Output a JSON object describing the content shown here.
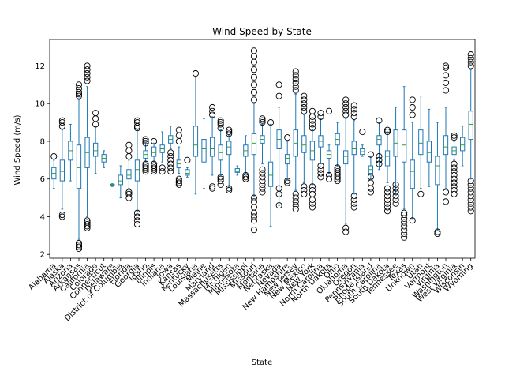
{
  "chart_data": {
    "type": "boxplot",
    "title": "Wind Speed by State",
    "xlabel": "State",
    "ylabel": "Wind Speed (m/s)",
    "ylim": [
      1.8,
      13.4
    ],
    "yticks": [
      2,
      4,
      6,
      8,
      10,
      12
    ],
    "grid": false,
    "legend": "none",
    "colors": {
      "box": "#1f77b4",
      "median": "#2ca02c",
      "flier": "#000000"
    },
    "categories": [
      "Alabama",
      "Alaska",
      "Arizona",
      "Arkansas",
      "California",
      "Colorado",
      "Connecticut",
      "Delaware",
      "District of Columbia",
      "Florida",
      "Georgia",
      "Idaho",
      "Illinois",
      "Indiana",
      "Iowa",
      "Kansas",
      "Kentucky",
      "Louisiana",
      "Maine",
      "Maryland",
      "Massachusetts",
      "Michigan",
      "Minnesota",
      "Mississippi",
      "Missouri",
      "Montana",
      "Nebraska",
      "Nevada",
      "New Hampshire",
      "New Jersey",
      "New Mexico",
      "New York",
      "North Carolina",
      "North Dakota",
      "Ohio",
      "Oklahoma",
      "Oregon",
      "Pennsylvania",
      "Rhode Island",
      "South Carolina",
      "South Dakota",
      "Tennessee",
      "Texas",
      "Unknown",
      "Utah",
      "Vermont",
      "Virginia",
      "Washington",
      "West Virginia",
      "Wisconsin",
      "Wyoming"
    ],
    "boxes": [
      {
        "min": 5.5,
        "q1": 6.0,
        "median": 6.3,
        "q3": 6.6,
        "max": 7.0,
        "fliers": [
          7.2
        ]
      },
      {
        "min": 4.4,
        "q1": 5.9,
        "median": 6.4,
        "q3": 7.0,
        "max": 8.6,
        "fliers": [
          4.0,
          4.1,
          8.8,
          9.0,
          9.1
        ]
      },
      {
        "min": 5.9,
        "q1": 7.0,
        "median": 7.5,
        "q3": 8.0,
        "max": 8.9,
        "fliers": []
      },
      {
        "min": 2.8,
        "q1": 5.5,
        "median": 6.6,
        "q3": 7.8,
        "max": 10.2,
        "fliers": [
          2.3,
          2.4,
          2.5,
          2.6,
          10.4,
          10.5,
          10.6,
          10.8,
          11.0
        ]
      },
      {
        "min": 4.0,
        "q1": 6.6,
        "median": 7.4,
        "q3": 8.2,
        "max": 10.9,
        "fliers": [
          3.4,
          3.5,
          3.6,
          3.7,
          3.8,
          11.2,
          11.4,
          11.6,
          11.8,
          12.0
        ]
      },
      {
        "min": 6.3,
        "q1": 7.2,
        "median": 7.5,
        "q3": 7.9,
        "max": 8.8,
        "fliers": [
          8.9,
          9.2,
          9.5
        ]
      },
      {
        "min": 6.6,
        "q1": 6.9,
        "median": 7.1,
        "q3": 7.3,
        "max": 7.5,
        "fliers": []
      },
      {
        "min": 5.6,
        "q1": 5.65,
        "median": 5.68,
        "q3": 5.72,
        "max": 5.75,
        "fliers": []
      },
      {
        "min": 5.0,
        "q1": 5.7,
        "median": 5.9,
        "q3": 6.2,
        "max": 6.7,
        "fliers": []
      },
      {
        "min": 5.5,
        "q1": 6.0,
        "median": 6.2,
        "q3": 6.5,
        "max": 7.0,
        "fliers": [
          5.0,
          5.2,
          5.3,
          7.2,
          7.5,
          7.8
        ]
      },
      {
        "min": 4.3,
        "q1": 5.9,
        "median": 6.5,
        "q3": 7.0,
        "max": 8.6,
        "fliers": [
          3.6,
          3.8,
          4.0,
          4.2,
          8.7,
          8.8,
          9.0,
          9.1
        ]
      },
      {
        "min": 6.9,
        "q1": 7.1,
        "median": 7.3,
        "q3": 7.5,
        "max": 7.9,
        "fliers": [
          6.4,
          6.5,
          6.6,
          6.7,
          6.8,
          7.9,
          8.0,
          8.1
        ]
      },
      {
        "min": 6.9,
        "q1": 7.2,
        "median": 7.4,
        "q3": 7.7,
        "max": 7.9,
        "fliers": [
          6.4,
          6.5,
          6.6,
          6.7,
          6.8,
          8.0
        ]
      },
      {
        "min": 6.9,
        "q1": 7.4,
        "median": 7.6,
        "q3": 7.8,
        "max": 8.5,
        "fliers": [
          6.4,
          6.6
        ]
      },
      {
        "min": 7.6,
        "q1": 7.9,
        "median": 8.1,
        "q3": 8.3,
        "max": 8.8,
        "fliers": [
          6.4,
          6.6,
          6.8,
          7.0,
          7.2,
          7.4
        ]
      },
      {
        "min": 6.3,
        "q1": 6.6,
        "median": 6.8,
        "q3": 7.0,
        "max": 7.7,
        "fliers": [
          5.7,
          5.8,
          5.9,
          6.0,
          8.0,
          8.3,
          8.6
        ]
      },
      {
        "min": 6.1,
        "q1": 6.2,
        "median": 6.3,
        "q3": 6.5,
        "max": 6.6,
        "fliers": [
          7.0
        ]
      },
      {
        "min": 5.2,
        "q1": 7.2,
        "median": 7.8,
        "q3": 8.8,
        "max": 11.4,
        "fliers": [
          11.6
        ]
      },
      {
        "min": 5.5,
        "q1": 6.9,
        "median": 7.6,
        "q3": 8.1,
        "max": 9.2,
        "fliers": []
      },
      {
        "min": 6.2,
        "q1": 7.2,
        "median": 7.6,
        "q3": 8.2,
        "max": 9.3,
        "fliers": [
          5.5,
          5.6,
          9.4,
          9.6,
          9.8
        ]
      },
      {
        "min": 6.2,
        "q1": 7.0,
        "median": 7.4,
        "q3": 7.8,
        "max": 8.6,
        "fliers": [
          5.7,
          5.9,
          6.0,
          6.1,
          8.7,
          8.9,
          9.0,
          9.1
        ]
      },
      {
        "min": 5.6,
        "q1": 7.3,
        "median": 7.7,
        "q3": 8.0,
        "max": 8.3,
        "fliers": [
          5.4,
          5.5,
          8.4,
          8.5,
          8.6
        ]
      },
      {
        "min": 6.2,
        "q1": 6.35,
        "median": 6.4,
        "q3": 6.55,
        "max": 6.7,
        "fliers": []
      },
      {
        "min": 6.3,
        "q1": 7.2,
        "median": 7.5,
        "q3": 7.8,
        "max": 8.3,
        "fliers": [
          6.0,
          6.1,
          6.2
        ]
      },
      {
        "min": 5.1,
        "q1": 7.3,
        "median": 7.9,
        "q3": 8.4,
        "max": 10.0,
        "fliers": [
          3.3,
          3.8,
          4.0,
          4.2,
          4.5,
          4.8,
          5.0,
          10.2,
          10.6,
          11.0,
          11.4,
          11.8,
          12.2,
          12.5,
          12.8
        ]
      },
      {
        "min": 6.8,
        "q1": 7.9,
        "median": 8.1,
        "q3": 8.3,
        "max": 8.9,
        "fliers": [
          5.3,
          5.5,
          5.7,
          5.9,
          6.1,
          6.3,
          6.5,
          9.0,
          9.1,
          9.2
        ]
      },
      {
        "min": 3.5,
        "q1": 5.6,
        "median": 6.2,
        "q3": 6.9,
        "max": 8.9,
        "fliers": [
          9.0
        ]
      },
      {
        "min": 4.6,
        "q1": 7.6,
        "median": 8.1,
        "q3": 8.6,
        "max": 9.8,
        "fliers": [
          4.6,
          5.2,
          5.5,
          10.4,
          11.0
        ]
      },
      {
        "min": 6.0,
        "q1": 6.8,
        "median": 7.1,
        "q3": 7.3,
        "max": 8.0,
        "fliers": [
          5.8,
          5.9,
          8.2
        ]
      },
      {
        "min": 5.4,
        "q1": 7.2,
        "median": 7.9,
        "q3": 8.6,
        "max": 10.5,
        "fliers": [
          4.4,
          4.6,
          4.8,
          5.0,
          5.2,
          10.7,
          10.9,
          11.1,
          11.3,
          11.5,
          11.7
        ]
      },
      {
        "min": 5.8,
        "q1": 7.4,
        "median": 7.8,
        "q3": 8.3,
        "max": 9.4,
        "fliers": [
          5.2,
          5.4,
          5.6,
          9.6,
          9.8,
          10.0,
          10.2,
          10.4
        ]
      },
      {
        "min": 5.7,
        "q1": 7.0,
        "median": 7.5,
        "q3": 8.0,
        "max": 8.6,
        "fliers": [
          4.5,
          4.7,
          4.9,
          5.2,
          5.4,
          5.6,
          8.7,
          8.9,
          9.1,
          9.3,
          9.6
        ]
      },
      {
        "min": 6.8,
        "q1": 7.7,
        "median": 8.0,
        "q3": 8.3,
        "max": 9.2,
        "fliers": [
          6.1,
          6.3,
          6.5,
          6.7,
          9.3,
          9.5
        ]
      },
      {
        "min": 6.3,
        "q1": 7.1,
        "median": 7.3,
        "q3": 7.5,
        "max": 7.8,
        "fliers": [
          6.0,
          6.2,
          9.6
        ]
      },
      {
        "min": 6.7,
        "q1": 7.8,
        "median": 8.1,
        "q3": 8.4,
        "max": 9.0,
        "fliers": [
          5.9,
          6.0,
          6.1,
          6.2,
          6.3,
          6.4,
          6.5,
          6.6
        ]
      },
      {
        "min": 3.6,
        "q1": 6.8,
        "median": 7.2,
        "q3": 7.5,
        "max": 9.2,
        "fliers": [
          3.2,
          3.4,
          9.4,
          9.6,
          9.8,
          10.0,
          10.2
        ]
      },
      {
        "min": 5.2,
        "q1": 7.3,
        "median": 7.6,
        "q3": 8.0,
        "max": 9.1,
        "fliers": [
          4.5,
          4.7,
          4.9,
          5.1,
          9.3,
          9.5,
          9.7,
          9.9
        ]
      },
      {
        "min": 7.2,
        "q1": 7.3,
        "median": 7.45,
        "q3": 7.6,
        "max": 7.8,
        "fliers": [
          8.5
        ]
      },
      {
        "min": 6.0,
        "q1": 6.3,
        "median": 6.5,
        "q3": 6.7,
        "max": 7.2,
        "fliers": [
          5.3,
          5.5,
          5.8,
          6.1,
          7.3
        ]
      },
      {
        "min": 6.5,
        "q1": 7.8,
        "median": 8.1,
        "q3": 8.3,
        "max": 9.0,
        "fliers": [
          6.8,
          7.0,
          7.2,
          9.1
        ]
      },
      {
        "min": 5.8,
        "q1": 6.7,
        "median": 7.2,
        "q3": 7.5,
        "max": 8.5,
        "fliers": [
          4.3,
          4.5,
          4.7,
          4.9,
          5.1,
          5.3,
          5.5,
          8.5,
          8.6
        ]
      },
      {
        "min": 5.2,
        "q1": 7.2,
        "median": 7.9,
        "q3": 8.6,
        "max": 9.8,
        "fliers": [
          4.7,
          4.9,
          5.1,
          5.3,
          5.5,
          5.7
        ]
      },
      {
        "min": 4.4,
        "q1": 6.9,
        "median": 7.8,
        "q3": 8.6,
        "max": 10.9,
        "fliers": [
          2.9,
          3.1,
          3.3,
          3.5,
          3.7,
          3.9,
          4.1,
          4.2
        ]
      },
      {
        "min": 3.9,
        "q1": 5.5,
        "median": 6.4,
        "q3": 7.0,
        "max": 9.0,
        "fliers": [
          3.8,
          9.4,
          9.8,
          10.2
        ]
      },
      {
        "min": 5.5,
        "q1": 7.3,
        "median": 7.9,
        "q3": 8.6,
        "max": 10.4,
        "fliers": [
          5.2
        ]
      },
      {
        "min": 5.6,
        "q1": 6.9,
        "median": 7.4,
        "q3": 8.0,
        "max": 9.7,
        "fliers": []
      },
      {
        "min": 3.3,
        "q1": 5.7,
        "median": 6.7,
        "q3": 7.2,
        "max": 9.0,
        "fliers": [
          3.1,
          3.2
        ]
      },
      {
        "min": 5.5,
        "q1": 7.3,
        "median": 7.7,
        "q3": 8.3,
        "max": 9.8,
        "fliers": [
          4.8,
          5.3,
          10.7,
          11.1,
          11.5,
          11.9,
          12.0
        ]
      },
      {
        "min": 7.0,
        "q1": 7.3,
        "median": 7.5,
        "q3": 7.7,
        "max": 8.0,
        "fliers": [
          5.2,
          5.4,
          5.6,
          5.8,
          6.0,
          6.2,
          6.4,
          6.6,
          6.8,
          8.2,
          8.3
        ]
      },
      {
        "min": 6.7,
        "q1": 7.5,
        "median": 7.8,
        "q3": 8.2,
        "max": 8.8,
        "fliers": []
      },
      {
        "min": 6.0,
        "q1": 8.1,
        "median": 8.9,
        "q3": 9.6,
        "max": 11.8,
        "fliers": [
          4.3,
          4.5,
          4.7,
          4.9,
          5.1,
          5.3,
          5.5,
          5.7,
          5.9,
          12.0,
          12.2,
          12.4,
          12.6
        ]
      }
    ]
  }
}
